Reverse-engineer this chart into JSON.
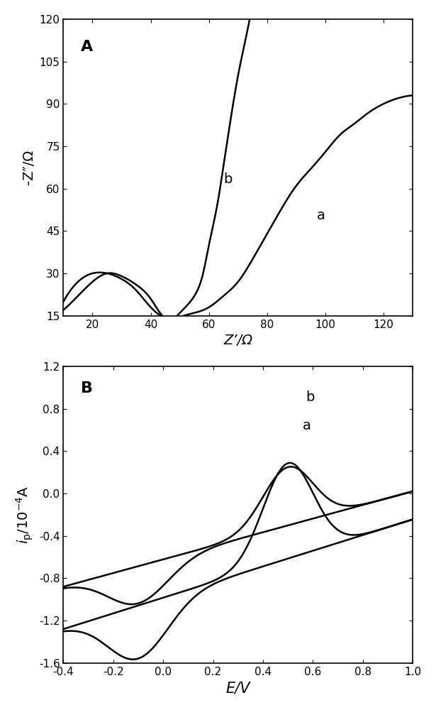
{
  "panel_A": {
    "label": "A",
    "xlabel": "Z’/Ω",
    "ylabel": "-Z″/Ω",
    "xlim": [
      10,
      130
    ],
    "ylim": [
      15,
      120
    ],
    "xticks": [
      20,
      40,
      60,
      80,
      100,
      120
    ],
    "yticks": [
      15,
      30,
      45,
      60,
      75,
      90,
      105,
      120
    ],
    "curve_a_label": "a",
    "curve_b_label": "b"
  },
  "panel_B": {
    "label": "B",
    "xlabel": "E/V",
    "ylabel": "i_p/10⁻⁴A",
    "xlim": [
      -0.4,
      1.0
    ],
    "ylim": [
      -1.6,
      1.2
    ],
    "xticks": [
      -0.4,
      -0.2,
      0.0,
      0.2,
      0.4,
      0.6,
      0.8,
      1.0
    ],
    "yticks": [
      -1.6,
      -1.2,
      -0.8,
      -0.4,
      0.0,
      0.4,
      0.8,
      1.2
    ],
    "curve_a_label": "a",
    "curve_b_label": "b"
  },
  "line_color": "#000000",
  "line_width": 1.8,
  "background_color": "#ffffff",
  "label_fontsize": 14,
  "tick_fontsize": 11,
  "panel_label_fontsize": 16
}
